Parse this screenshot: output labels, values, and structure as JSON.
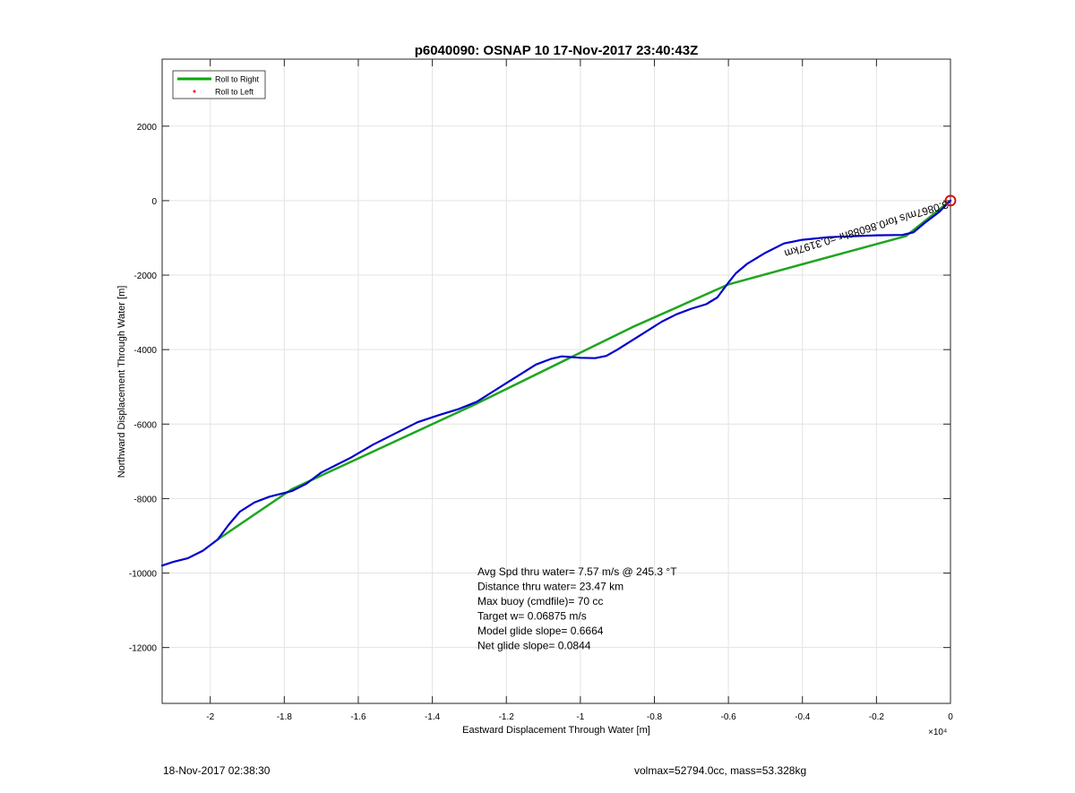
{
  "footer": {
    "timestamp": "18-Nov-2017 02:38:30",
    "vol_mass": "volmax=52794.0cc, mass=53.328kg"
  },
  "chart_data": {
    "type": "line",
    "title": "p6040090: OSNAP 10 17-Nov-2017 23:40:43Z",
    "xlabel": "Eastward Displacement Through Water [m]",
    "ylabel": "Northward Displacement Through Water [m]",
    "x_exponent_label": "×10⁴",
    "xlim": [
      -2.13,
      0
    ],
    "ylim": [
      -13500,
      3800
    ],
    "x_ticks": [
      -2,
      -1.8,
      -1.6,
      -1.4,
      -1.2,
      -1,
      -0.8,
      -0.6,
      -0.4,
      -0.2,
      0
    ],
    "x_tick_labels": [
      "-2",
      "-1.8",
      "-1.6",
      "-1.4",
      "-1.2",
      "-1",
      "-0.8",
      "-0.6",
      "-0.4",
      "-0.2",
      "0"
    ],
    "y_ticks": [
      -12000,
      -10000,
      -8000,
      -6000,
      -4000,
      -2000,
      0,
      2000
    ],
    "y_tick_labels": [
      "-12000",
      "-10000",
      "-8000",
      "-6000",
      "-4000",
      "-2000",
      "0",
      "2000"
    ],
    "grid": true,
    "legend_position": "top-left",
    "legend": [
      {
        "label": "Roll to Right",
        "color": "#00aa00",
        "style": "line"
      },
      {
        "label": "Roll to Left",
        "color": "#ff0000",
        "style": "dot"
      }
    ],
    "series": [
      {
        "name": "Roll to Right",
        "color": "#1fa51f",
        "x": [
          0,
          -0.12,
          -0.6,
          -0.86,
          -1.28,
          -1.78,
          -1.98
        ],
        "y": [
          0,
          -950,
          -2250,
          -3400,
          -5450,
          -7750,
          -9100
        ]
      },
      {
        "color": "#0000cc",
        "x": [
          0,
          -0.03,
          -0.07,
          -0.1,
          -0.13,
          -0.2,
          -0.3,
          -0.33,
          -0.4,
          -0.45,
          -0.5,
          -0.55,
          -0.58,
          -0.6,
          -0.63,
          -0.66,
          -0.7,
          -0.74,
          -0.78,
          -0.82,
          -0.86,
          -0.9,
          -0.93,
          -0.96,
          -1.0,
          -1.05,
          -1.08,
          -1.12,
          -1.16,
          -1.2,
          -1.24,
          -1.28,
          -1.33,
          -1.38,
          -1.44,
          -1.5,
          -1.56,
          -1.62,
          -1.66,
          -1.7,
          -1.74,
          -1.78,
          -1.84,
          -1.88,
          -1.92,
          -1.95,
          -1.98,
          -2.02,
          -2.06,
          -2.1,
          -2.13
        ],
        "y": [
          0,
          -300,
          -600,
          -850,
          -920,
          -930,
          -970,
          -980,
          -1050,
          -1150,
          -1400,
          -1700,
          -1950,
          -2200,
          -2600,
          -2780,
          -2900,
          -3050,
          -3250,
          -3500,
          -3750,
          -4000,
          -4170,
          -4230,
          -4220,
          -4180,
          -4250,
          -4400,
          -4650,
          -4900,
          -5150,
          -5400,
          -5600,
          -5750,
          -5950,
          -6250,
          -6550,
          -6900,
          -7100,
          -7300,
          -7600,
          -7800,
          -7950,
          -8100,
          -8350,
          -8700,
          -9100,
          -9400,
          -9600,
          -9700,
          -9800
        ]
      }
    ],
    "trace_label": "3.0867m/s for0.86088hr =0.3197km",
    "start_marker": {
      "x": 0,
      "y": 0,
      "color": "#dd0000"
    },
    "annotations": [
      "Avg Spd thru water=  7.57 m/s @ 245.3 °T",
      "Distance thru water= 23.47 km",
      "Max buoy (cmdfile)= 70 cc",
      "Target w= 0.06875 m/s",
      "Model glide slope= 0.6664",
      "Net glide slope= 0.0844"
    ]
  }
}
